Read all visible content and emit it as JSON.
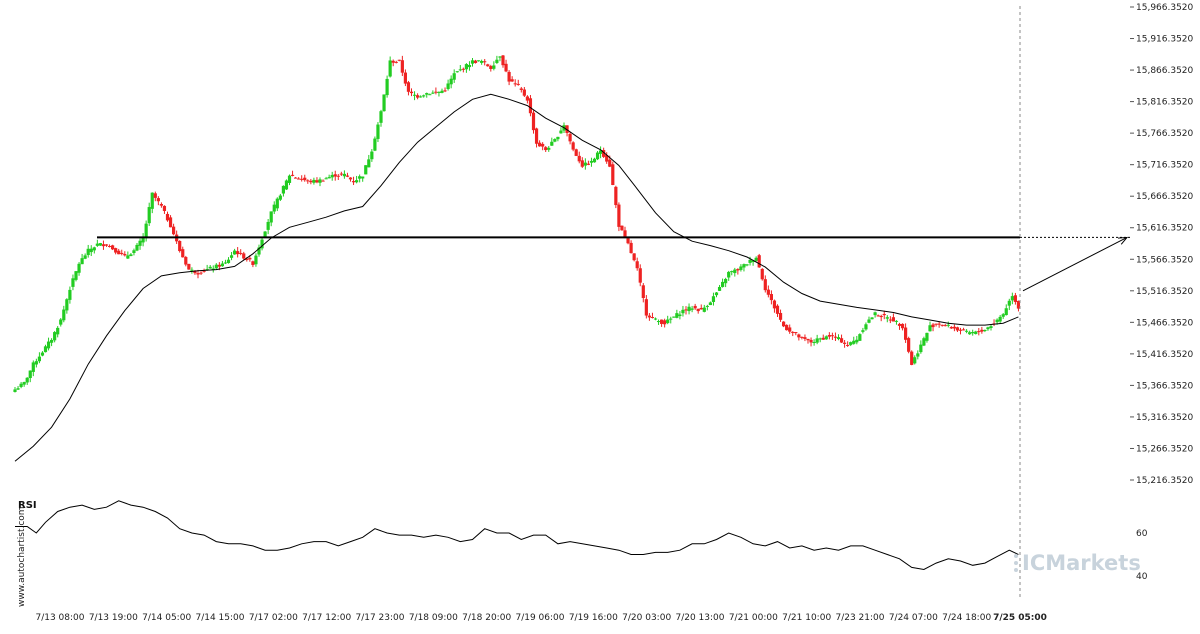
{
  "chart_data": {
    "type": "candlestick",
    "colors": {
      "up": "#22cc22",
      "down": "#ee2222",
      "ma": "#000000",
      "resistance": "#000000",
      "rsi": "#000000",
      "forecast_arrow": "#000000",
      "vertical_marker": "#888888"
    },
    "price_axis": {
      "ylim": [
        15216.352,
        15966.352
      ],
      "ticks": [
        "15,966.3520",
        "15,916.3520",
        "15,866.3520",
        "15,816.3520",
        "15,766.3520",
        "15,716.3520",
        "15,666.3520",
        "15,616.3520",
        "15,566.3520",
        "15,516.3520",
        "15,466.3520",
        "15,416.3520",
        "15,366.3520",
        "15,316.3520",
        "15,266.3520",
        "15,216.3520"
      ]
    },
    "x_ticks": [
      "7/13 08:00",
      "7/13 19:00",
      "7/14 05:00",
      "7/14 15:00",
      "7/17 02:00",
      "7/17 12:00",
      "7/17 23:00",
      "7/18 09:00",
      "7/18 20:00",
      "7/19 06:00",
      "7/19 16:00",
      "7/20 03:00",
      "7/20 13:00",
      "7/21 00:00",
      "7/21 10:00",
      "7/23 21:00",
      "7/24 07:00",
      "7/24 18:00",
      "7/25 05:00"
    ],
    "x_tick_highlight": "7/25 05:00",
    "close_anchors": [
      [
        0,
        15360
      ],
      [
        3,
        15370
      ],
      [
        6,
        15400
      ],
      [
        9,
        15420
      ],
      [
        12,
        15440
      ],
      [
        15,
        15470
      ],
      [
        18,
        15520
      ],
      [
        21,
        15560
      ],
      [
        24,
        15580
      ],
      [
        27,
        15590
      ],
      [
        30,
        15590
      ],
      [
        33,
        15580
      ],
      [
        36,
        15570
      ],
      [
        39,
        15580
      ],
      [
        42,
        15600
      ],
      [
        45,
        15670
      ],
      [
        48,
        15650
      ],
      [
        51,
        15620
      ],
      [
        54,
        15580
      ],
      [
        57,
        15550
      ],
      [
        60,
        15545
      ],
      [
        63,
        15550
      ],
      [
        66,
        15555
      ],
      [
        69,
        15560
      ],
      [
        72,
        15580
      ],
      [
        75,
        15570
      ],
      [
        78,
        15560
      ],
      [
        81,
        15600
      ],
      [
        84,
        15640
      ],
      [
        87,
        15670
      ],
      [
        90,
        15700
      ],
      [
        93,
        15695
      ],
      [
        96,
        15690
      ],
      [
        99,
        15690
      ],
      [
        102,
        15695
      ],
      [
        105,
        15700
      ],
      [
        108,
        15700
      ],
      [
        111,
        15690
      ],
      [
        114,
        15700
      ],
      [
        117,
        15740
      ],
      [
        120,
        15800
      ],
      [
        123,
        15880
      ],
      [
        126,
        15880
      ],
      [
        129,
        15830
      ],
      [
        132,
        15825
      ],
      [
        135,
        15830
      ],
      [
        138,
        15830
      ],
      [
        141,
        15835
      ],
      [
        144,
        15860
      ],
      [
        147,
        15870
      ],
      [
        150,
        15880
      ],
      [
        153,
        15880
      ],
      [
        156,
        15870
      ],
      [
        159,
        15890
      ],
      [
        162,
        15850
      ],
      [
        165,
        15840
      ],
      [
        168,
        15820
      ],
      [
        171,
        15750
      ],
      [
        174,
        15740
      ],
      [
        177,
        15755
      ],
      [
        180,
        15780
      ],
      [
        183,
        15740
      ],
      [
        186,
        15715
      ],
      [
        189,
        15720
      ],
      [
        192,
        15740
      ],
      [
        195,
        15715
      ],
      [
        198,
        15620
      ],
      [
        201,
        15590
      ],
      [
        204,
        15550
      ],
      [
        207,
        15480
      ],
      [
        210,
        15470
      ],
      [
        213,
        15465
      ],
      [
        216,
        15475
      ],
      [
        219,
        15485
      ],
      [
        222,
        15490
      ],
      [
        225,
        15485
      ],
      [
        228,
        15500
      ],
      [
        231,
        15520
      ],
      [
        234,
        15545
      ],
      [
        237,
        15550
      ],
      [
        240,
        15560
      ],
      [
        243,
        15570
      ],
      [
        246,
        15520
      ],
      [
        249,
        15490
      ],
      [
        252,
        15460
      ],
      [
        255,
        15450
      ],
      [
        258,
        15440
      ],
      [
        261,
        15435
      ],
      [
        264,
        15440
      ],
      [
        267,
        15445
      ],
      [
        270,
        15440
      ],
      [
        273,
        15430
      ],
      [
        276,
        15440
      ],
      [
        279,
        15465
      ],
      [
        282,
        15480
      ],
      [
        285,
        15475
      ],
      [
        288,
        15470
      ],
      [
        291,
        15460
      ],
      [
        294,
        15400
      ],
      [
        297,
        15430
      ],
      [
        300,
        15460
      ],
      [
        303,
        15465
      ],
      [
        306,
        15460
      ],
      [
        309,
        15455
      ],
      [
        312,
        15450
      ],
      [
        315,
        15450
      ],
      [
        318,
        15455
      ],
      [
        321,
        15465
      ],
      [
        324,
        15480
      ],
      [
        327,
        15510
      ],
      [
        329,
        15490
      ]
    ],
    "ma_path": [
      [
        0,
        15246
      ],
      [
        6,
        15270
      ],
      [
        12,
        15300
      ],
      [
        18,
        15345
      ],
      [
        24,
        15400
      ],
      [
        30,
        15445
      ],
      [
        36,
        15485
      ],
      [
        42,
        15520
      ],
      [
        48,
        15540
      ],
      [
        54,
        15545
      ],
      [
        60,
        15548
      ],
      [
        66,
        15550
      ],
      [
        72,
        15555
      ],
      [
        78,
        15575
      ],
      [
        84,
        15600
      ],
      [
        90,
        15617
      ],
      [
        96,
        15625
      ],
      [
        102,
        15633
      ],
      [
        108,
        15643
      ],
      [
        114,
        15650
      ],
      [
        120,
        15683
      ],
      [
        126,
        15720
      ],
      [
        132,
        15752
      ],
      [
        138,
        15776
      ],
      [
        144,
        15800
      ],
      [
        150,
        15820
      ],
      [
        156,
        15828
      ],
      [
        162,
        15820
      ],
      [
        168,
        15810
      ],
      [
        174,
        15790
      ],
      [
        180,
        15775
      ],
      [
        186,
        15755
      ],
      [
        192,
        15740
      ],
      [
        198,
        15715
      ],
      [
        204,
        15678
      ],
      [
        210,
        15640
      ],
      [
        216,
        15610
      ],
      [
        222,
        15595
      ],
      [
        228,
        15588
      ],
      [
        234,
        15580
      ],
      [
        240,
        15570
      ],
      [
        246,
        15554
      ],
      [
        252,
        15530
      ],
      [
        258,
        15512
      ],
      [
        264,
        15500
      ],
      [
        270,
        15495
      ],
      [
        276,
        15490
      ],
      [
        282,
        15486
      ],
      [
        288,
        15482
      ],
      [
        294,
        15475
      ],
      [
        300,
        15470
      ],
      [
        306,
        15465
      ],
      [
        312,
        15462
      ],
      [
        318,
        15462
      ],
      [
        324,
        15465
      ],
      [
        329,
        15475
      ]
    ],
    "resistance_level": 15601,
    "forecast_arrow_target": 15601,
    "rsi": {
      "title": "RSI",
      "ylim": [
        30,
        80
      ],
      "ticks": [
        "60",
        "40"
      ],
      "points": [
        [
          0,
          63
        ],
        [
          4,
          63
        ],
        [
          7,
          60
        ],
        [
          10,
          65
        ],
        [
          14,
          70
        ],
        [
          18,
          72
        ],
        [
          22,
          73
        ],
        [
          26,
          71
        ],
        [
          30,
          72
        ],
        [
          34,
          75
        ],
        [
          38,
          73
        ],
        [
          42,
          72
        ],
        [
          46,
          70
        ],
        [
          50,
          67
        ],
        [
          54,
          62
        ],
        [
          58,
          60
        ],
        [
          62,
          59
        ],
        [
          66,
          56
        ],
        [
          70,
          55
        ],
        [
          74,
          55
        ],
        [
          78,
          54
        ],
        [
          82,
          52
        ],
        [
          86,
          52
        ],
        [
          90,
          53
        ],
        [
          94,
          55
        ],
        [
          98,
          56
        ],
        [
          102,
          56
        ],
        [
          106,
          54
        ],
        [
          110,
          56
        ],
        [
          114,
          58
        ],
        [
          118,
          62
        ],
        [
          122,
          60
        ],
        [
          126,
          59
        ],
        [
          130,
          59
        ],
        [
          134,
          58
        ],
        [
          138,
          59
        ],
        [
          142,
          58
        ],
        [
          146,
          56
        ],
        [
          150,
          57
        ],
        [
          154,
          62
        ],
        [
          158,
          60
        ],
        [
          162,
          60
        ],
        [
          166,
          57
        ],
        [
          170,
          59
        ],
        [
          174,
          59
        ],
        [
          178,
          55
        ],
        [
          182,
          56
        ],
        [
          186,
          55
        ],
        [
          190,
          54
        ],
        [
          194,
          53
        ],
        [
          198,
          52
        ],
        [
          202,
          50
        ],
        [
          206,
          50
        ],
        [
          210,
          51
        ],
        [
          214,
          51
        ],
        [
          218,
          52
        ],
        [
          222,
          55
        ],
        [
          226,
          55
        ],
        [
          230,
          57
        ],
        [
          234,
          60
        ],
        [
          238,
          58
        ],
        [
          242,
          55
        ],
        [
          246,
          54
        ],
        [
          250,
          56
        ],
        [
          254,
          53
        ],
        [
          258,
          54
        ],
        [
          262,
          52
        ],
        [
          266,
          53
        ],
        [
          270,
          52
        ],
        [
          274,
          54
        ],
        [
          278,
          54
        ],
        [
          282,
          52
        ],
        [
          286,
          50
        ],
        [
          290,
          48
        ],
        [
          294,
          44
        ],
        [
          298,
          43
        ],
        [
          302,
          46
        ],
        [
          306,
          48
        ],
        [
          310,
          47
        ],
        [
          314,
          45
        ],
        [
          318,
          46
        ],
        [
          322,
          49
        ],
        [
          326,
          52
        ],
        [
          329,
          50
        ]
      ]
    },
    "watermark": "www.autochartist.com",
    "brand": "ICMarkets"
  }
}
